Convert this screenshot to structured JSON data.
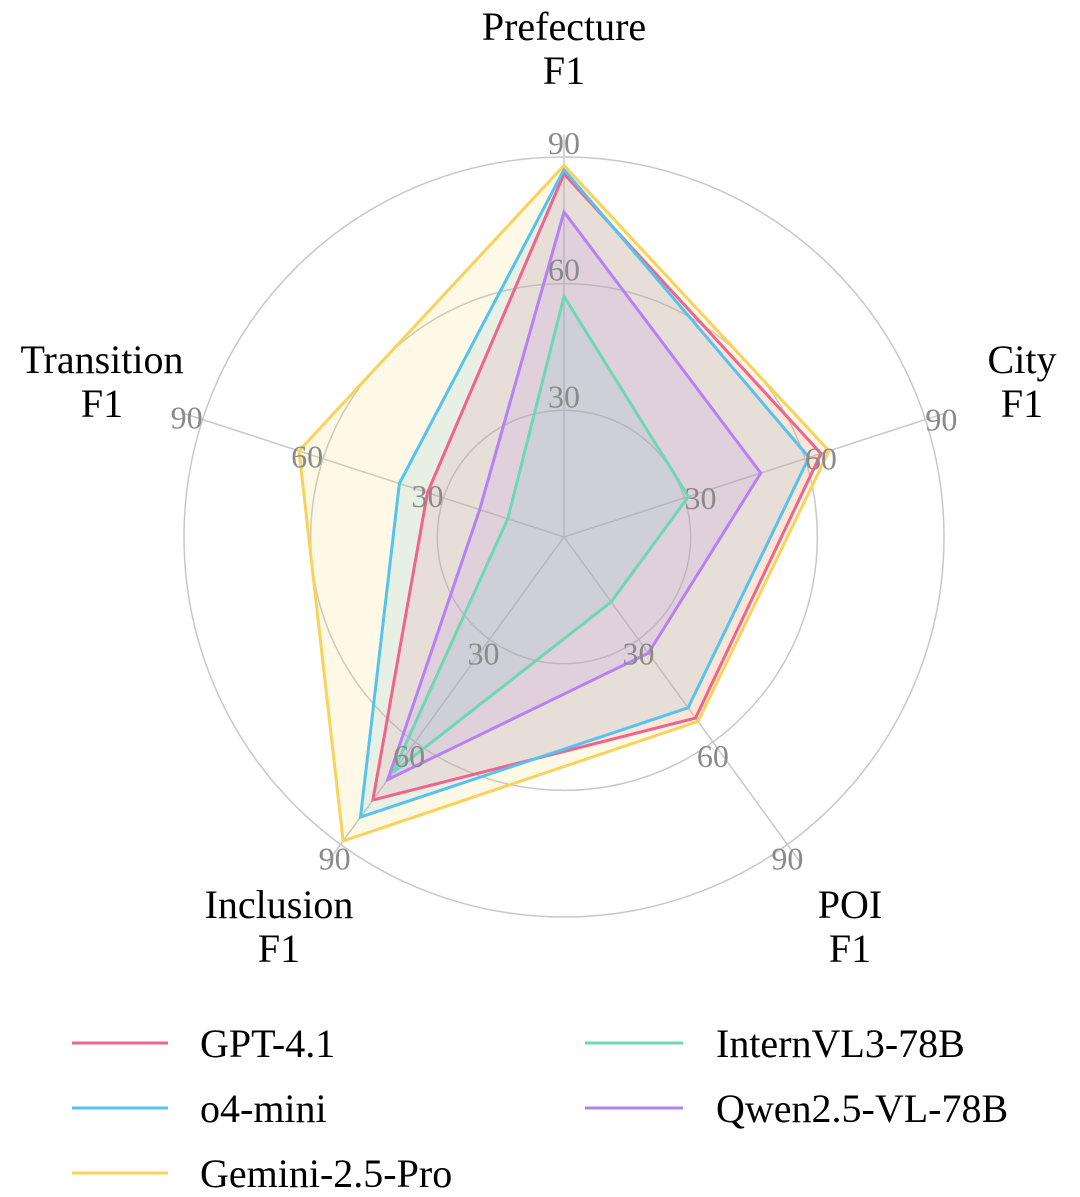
{
  "chart_data": {
    "type": "radar",
    "title": "",
    "axes": [
      {
        "name": "Prefecture F1",
        "lines": [
          "Prefecture",
          "F1"
        ]
      },
      {
        "name": "City F1",
        "lines": [
          "City",
          "F1"
        ]
      },
      {
        "name": "POI F1",
        "lines": [
          "POI",
          "F1"
        ]
      },
      {
        "name": "Inclusion F1",
        "lines": [
          "Inclusion",
          "F1"
        ]
      },
      {
        "name": "Transition F1",
        "lines": [
          "Transition",
          "F1"
        ]
      }
    ],
    "rlim": [
      0,
      90
    ],
    "ticks": [
      30,
      60,
      90
    ],
    "tick_labels": [
      "30",
      "60",
      "90"
    ],
    "grid": true,
    "legend_position": "bottom",
    "series": [
      {
        "name": "GPT-4.1",
        "color": "#F0648C",
        "values": [
          86,
          64,
          53,
          77,
          34
        ]
      },
      {
        "name": "o4-mini",
        "color": "#55C3F0",
        "values": [
          87,
          61,
          50,
          82,
          41
        ]
      },
      {
        "name": "Gemini-2.5-Pro",
        "color": "#FAD25A",
        "values": [
          88,
          66,
          54,
          89,
          66
        ]
      },
      {
        "name": "InternVL3-78B",
        "color": "#6ED7B4",
        "values": [
          57,
          31,
          19,
          69,
          14
        ]
      },
      {
        "name": "Qwen2.5-VL-78B",
        "color": "#B482F5",
        "values": [
          77,
          49,
          34,
          71,
          21
        ]
      }
    ]
  }
}
